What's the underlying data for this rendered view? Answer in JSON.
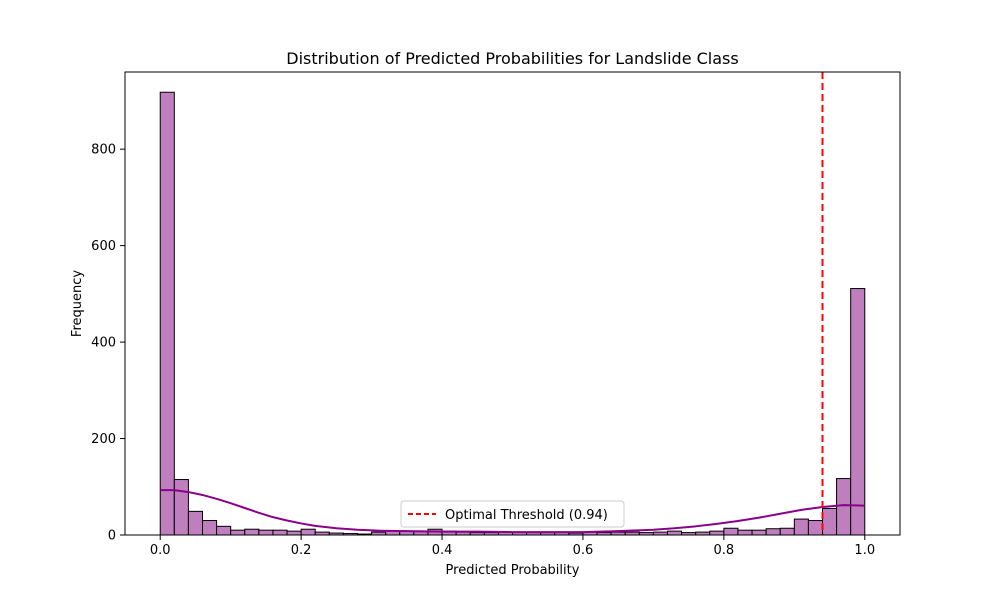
{
  "chart_data": {
    "type": "bar",
    "title": "Distribution of Predicted Probabilities for Landslide Class",
    "xlabel": "Predicted Probability",
    "ylabel": "Frequency",
    "xlim": [
      -0.05,
      1.05
    ],
    "ylim": [
      0,
      960
    ],
    "xticks": [
      0.0,
      0.2,
      0.4,
      0.6,
      0.8,
      1.0
    ],
    "xtick_labels": [
      "0.0",
      "0.2",
      "0.4",
      "0.6",
      "0.8",
      "1.0"
    ],
    "yticks": [
      0,
      200,
      400,
      600,
      800
    ],
    "ytick_labels": [
      "0",
      "200",
      "400",
      "600",
      "800"
    ],
    "bin_start": 0.0,
    "bin_width": 0.02,
    "counts": [
      918,
      115,
      49,
      30,
      18,
      10,
      12,
      10,
      10,
      8,
      12,
      6,
      4,
      3,
      2,
      6,
      8,
      8,
      8,
      12,
      8,
      6,
      5,
      5,
      6,
      6,
      5,
      5,
      5,
      4,
      6,
      5,
      6,
      6,
      5,
      6,
      8,
      5,
      6,
      8,
      14,
      10,
      10,
      13,
      14,
      33,
      30,
      55,
      117,
      511
    ],
    "bar_fill": "#bf7fbf",
    "bar_edge": "#000000",
    "kde": {
      "color": "#8b008b",
      "x": [
        0.0,
        0.02,
        0.04,
        0.06,
        0.08,
        0.1,
        0.12,
        0.14,
        0.16,
        0.18,
        0.2,
        0.22,
        0.25,
        0.28,
        0.31,
        0.35,
        0.4,
        0.45,
        0.5,
        0.55,
        0.6,
        0.65,
        0.7,
        0.73,
        0.76,
        0.79,
        0.82,
        0.85,
        0.88,
        0.91,
        0.94,
        0.97,
        1.0
      ],
      "y": [
        93,
        93,
        89,
        83,
        75,
        66,
        56,
        46,
        37,
        30,
        24,
        19,
        14,
        11,
        9,
        8,
        7,
        7,
        6,
        6,
        6,
        8,
        11,
        14,
        18,
        23,
        29,
        36,
        44,
        52,
        58,
        62,
        61
      ]
    },
    "threshold": {
      "value": 0.94,
      "color": "#ff0000",
      "label": "Optimal Threshold (0.94)"
    },
    "legend_position": "bottom-center",
    "grid": false
  }
}
